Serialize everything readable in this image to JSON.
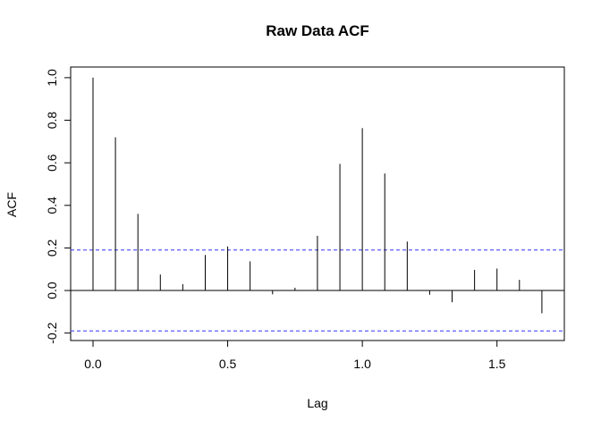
{
  "chart_data": {
    "type": "bar",
    "subtype": "acf-stem",
    "title": "Raw Data ACF",
    "xlabel": "Lag",
    "ylabel": "ACF",
    "xlim": [
      -0.083,
      1.75
    ],
    "ylim": [
      -0.235,
      1.05
    ],
    "x_ticks": [
      0.0,
      0.5,
      1.0,
      1.5
    ],
    "x_tick_labels": [
      "0.0",
      "0.5",
      "1.0",
      "1.5"
    ],
    "y_ticks": [
      -0.2,
      0.0,
      0.2,
      0.4,
      0.6,
      0.8,
      1.0
    ],
    "y_tick_labels": [
      "-0.2",
      "0.0",
      "0.2",
      "0.4",
      "0.6",
      "0.8",
      "1.0"
    ],
    "x": [
      0.0,
      0.0833,
      0.1667,
      0.25,
      0.3333,
      0.4167,
      0.5,
      0.5833,
      0.6667,
      0.75,
      0.8333,
      0.9167,
      1.0,
      1.0833,
      1.1667,
      1.25,
      1.3333,
      1.4167,
      1.5,
      1.5833,
      1.6667
    ],
    "values": [
      1.0,
      0.72,
      0.36,
      0.075,
      0.03,
      0.167,
      0.207,
      0.137,
      -0.018,
      0.013,
      0.257,
      0.595,
      0.763,
      0.55,
      0.23,
      -0.02,
      -0.055,
      0.097,
      0.103,
      0.05,
      -0.107
    ],
    "confidence_limit": 0.19,
    "grid": false,
    "colors": {
      "stem": "#000000",
      "confidence": "#3333ff",
      "zero_line": "#000000"
    }
  }
}
